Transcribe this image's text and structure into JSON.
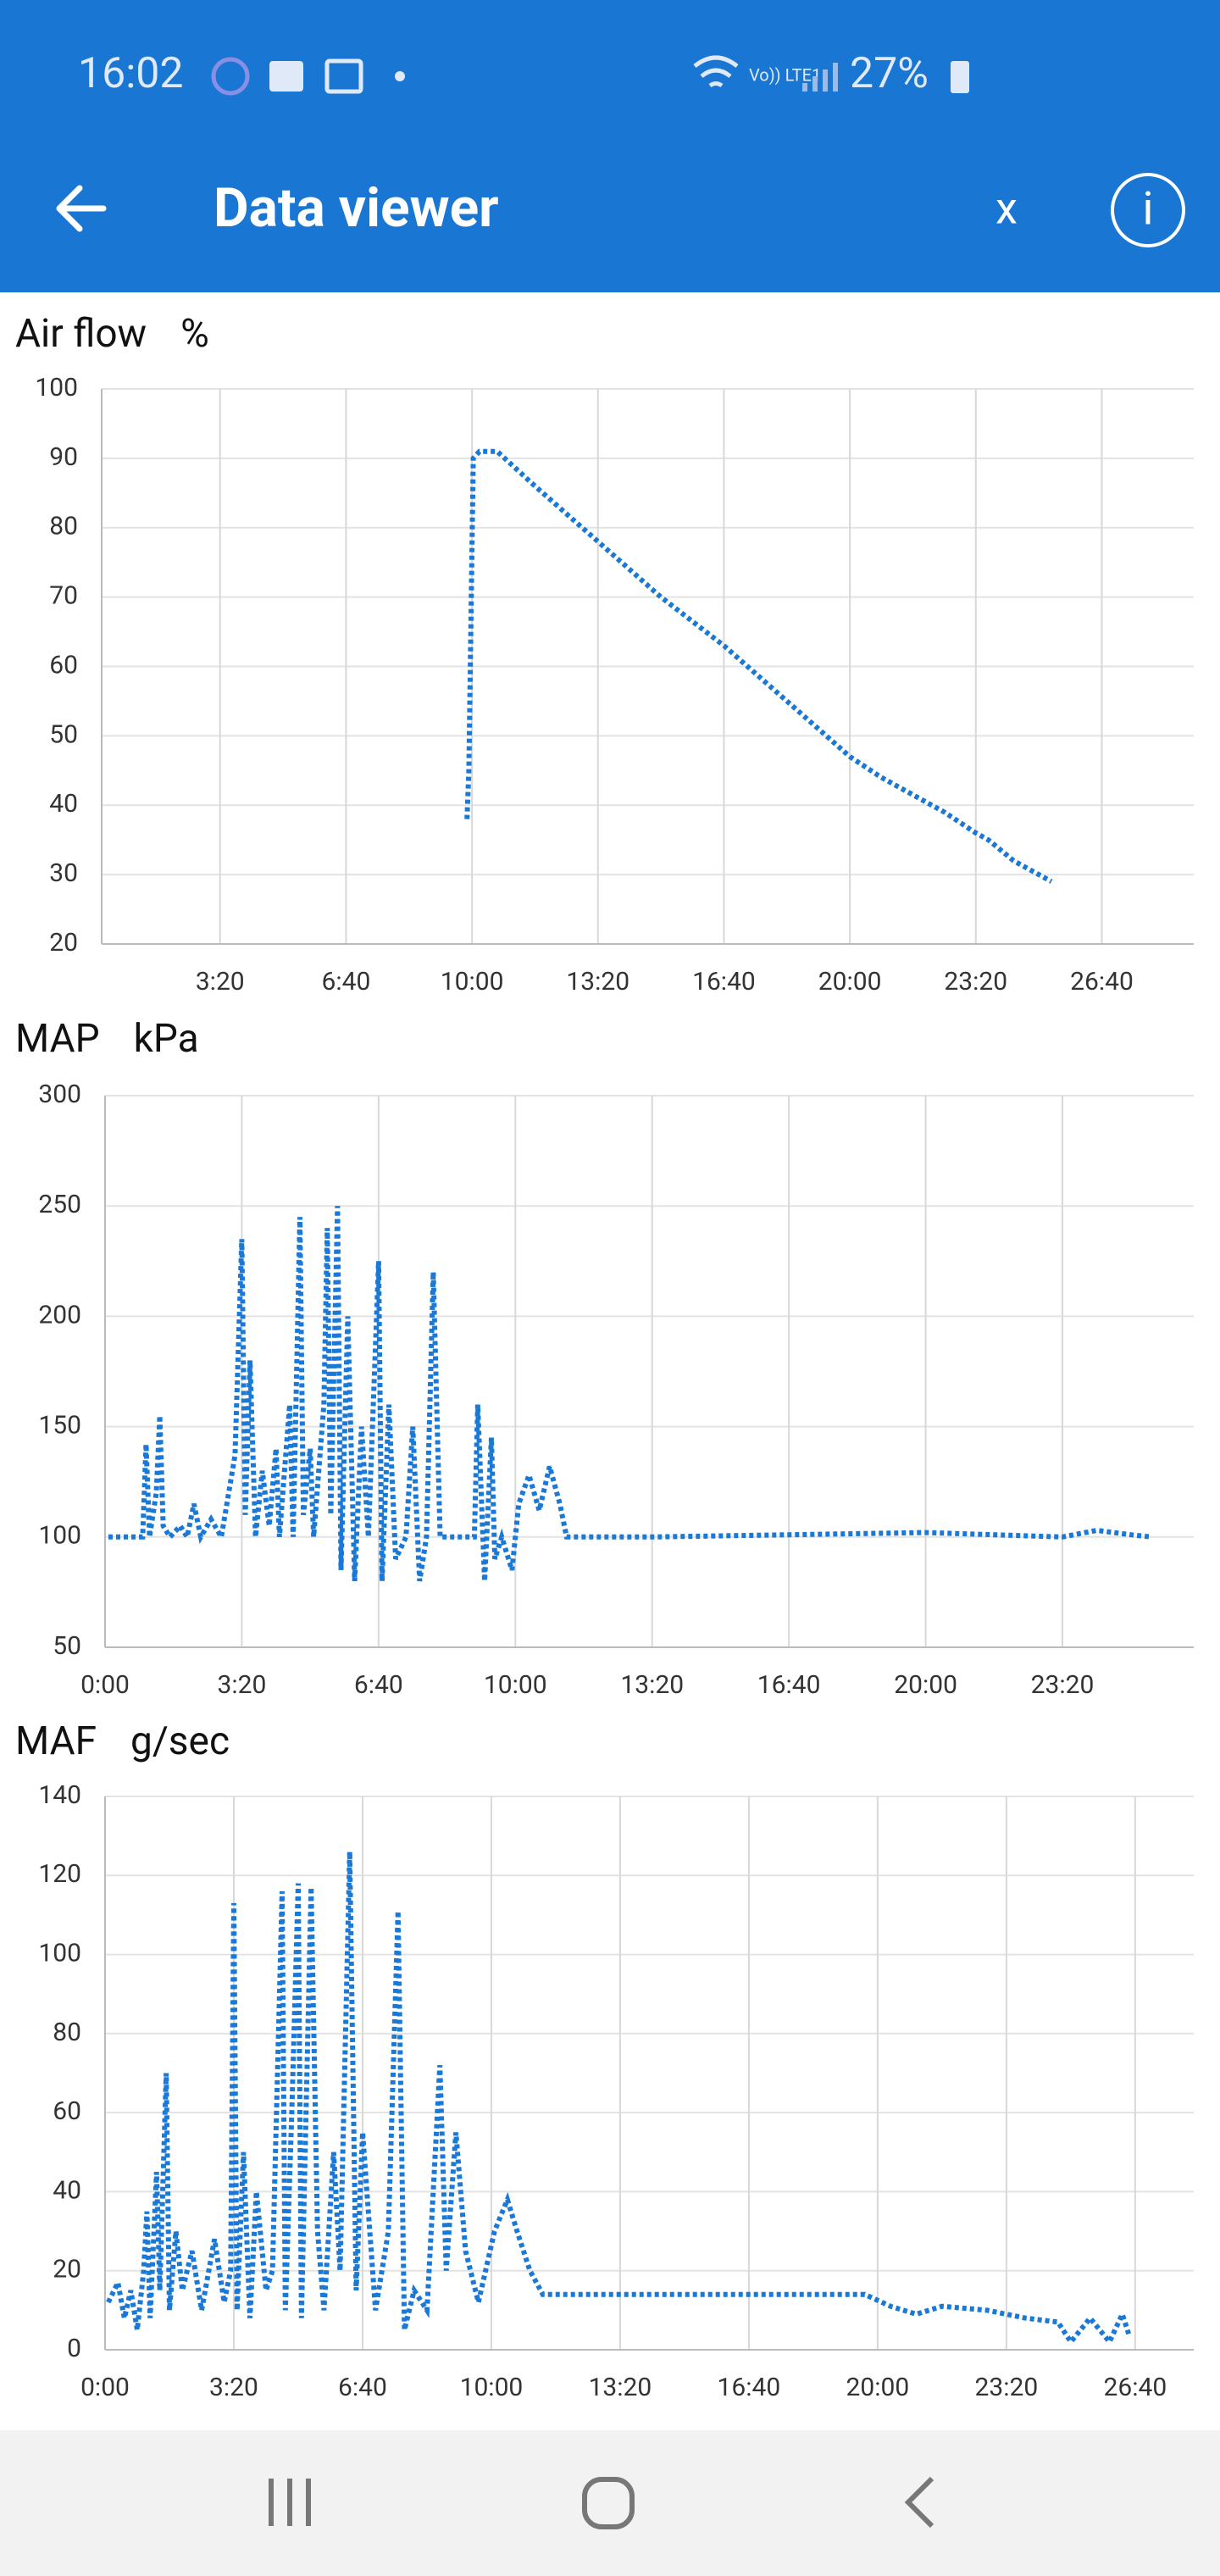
{
  "status_bar": {
    "time": "16:02",
    "network": "Vo)) LTE1",
    "battery": "27%"
  },
  "app_bar": {
    "title": "Data viewer",
    "close": "x",
    "info": "i"
  },
  "chart_data": [
    {
      "type": "line",
      "title": "Air flow",
      "y_unit": "%",
      "line_style": "dotted",
      "grid": true,
      "xlim": [
        12,
        1746
      ],
      "xticks": [
        {
          "value": 200,
          "label": "3:20"
        },
        {
          "value": 400,
          "label": "6:40"
        },
        {
          "value": 600,
          "label": "10:00"
        },
        {
          "value": 800,
          "label": "13:20"
        },
        {
          "value": 1000,
          "label": "16:40"
        },
        {
          "value": 1200,
          "label": "20:00"
        },
        {
          "value": 1400,
          "label": "23:20"
        },
        {
          "value": 1600,
          "label": "26:40"
        }
      ],
      "ylim": [
        20,
        100
      ],
      "yticks": [
        20,
        30,
        40,
        50,
        60,
        70,
        80,
        90,
        100
      ],
      "series": [
        {
          "color": "#1a78d6",
          "x": [
            592,
            595,
            602,
            612,
            640,
            700,
            800,
            900,
            1000,
            1100,
            1200,
            1250,
            1350,
            1400,
            1420,
            1460,
            1520
          ],
          "values": [
            38,
            45,
            90,
            91,
            91,
            86,
            78,
            70,
            63,
            55,
            47,
            44,
            39,
            36,
            35,
            32,
            29
          ]
        }
      ]
    },
    {
      "type": "line",
      "title": "MAP",
      "y_unit": "kPa",
      "line_style": "dotted",
      "grid": true,
      "xlim": [
        0,
        1592
      ],
      "xticks": [
        {
          "value": 0,
          "label": "0:00"
        },
        {
          "value": 200,
          "label": "3:20"
        },
        {
          "value": 400,
          "label": "6:40"
        },
        {
          "value": 600,
          "label": "10:00"
        },
        {
          "value": 800,
          "label": "13:20"
        },
        {
          "value": 1000,
          "label": "16:40"
        },
        {
          "value": 1200,
          "label": "20:00"
        },
        {
          "value": 1400,
          "label": "23:20"
        }
      ],
      "ylim": [
        50,
        300
      ],
      "yticks": [
        50,
        100,
        150,
        200,
        250,
        300
      ],
      "series": [
        {
          "color": "#1a78d6",
          "x": [
            5,
            40,
            55,
            60,
            65,
            75,
            80,
            85,
            95,
            110,
            120,
            130,
            140,
            155,
            170,
            190,
            200,
            205,
            212,
            220,
            230,
            240,
            250,
            255,
            270,
            275,
            285,
            290,
            300,
            305,
            320,
            325,
            330,
            340,
            345,
            355,
            365,
            375,
            385,
            400,
            405,
            415,
            425,
            440,
            450,
            460,
            470,
            480,
            490,
            540,
            545,
            555,
            565,
            570,
            580,
            595,
            605,
            620,
            635,
            650,
            665,
            675,
            800,
            1000,
            1200,
            1400,
            1450,
            1500,
            1530
          ],
          "values": [
            100,
            100,
            100,
            142,
            100,
            120,
            155,
            105,
            100,
            105,
            100,
            115,
            100,
            108,
            100,
            137,
            235,
            110,
            180,
            100,
            130,
            105,
            140,
            100,
            160,
            100,
            245,
            110,
            140,
            100,
            160,
            240,
            110,
            250,
            85,
            200,
            80,
            150,
            100,
            225,
            80,
            160,
            90,
            100,
            150,
            80,
            100,
            220,
            100,
            100,
            160,
            80,
            145,
            90,
            100,
            85,
            115,
            128,
            112,
            132,
            115,
            100,
            100,
            101,
            102,
            100,
            103,
            101,
            100
          ]
        }
      ]
    },
    {
      "type": "line",
      "title": "MAF",
      "y_unit": "g/sec",
      "line_style": "dotted",
      "grid": true,
      "xlim": [
        0,
        1691
      ],
      "xticks": [
        {
          "value": 0,
          "label": "0:00"
        },
        {
          "value": 200,
          "label": "3:20"
        },
        {
          "value": 400,
          "label": "6:40"
        },
        {
          "value": 600,
          "label": "10:00"
        },
        {
          "value": 800,
          "label": "13:20"
        },
        {
          "value": 1000,
          "label": "16:40"
        },
        {
          "value": 1200,
          "label": "20:00"
        },
        {
          "value": 1400,
          "label": "23:20"
        },
        {
          "value": 1600,
          "label": "26:40"
        }
      ],
      "ylim": [
        0,
        140
      ],
      "yticks": [
        0,
        20,
        40,
        60,
        80,
        100,
        120,
        140
      ],
      "series": [
        {
          "color": "#1a78d6",
          "x": [
            5,
            20,
            30,
            40,
            50,
            60,
            65,
            70,
            80,
            85,
            95,
            100,
            110,
            120,
            135,
            150,
            170,
            185,
            195,
            200,
            205,
            215,
            225,
            235,
            250,
            260,
            275,
            280,
            290,
            300,
            305,
            320,
            330,
            340,
            355,
            365,
            380,
            390,
            400,
            420,
            440,
            455,
            465,
            480,
            500,
            520,
            530,
            545,
            560,
            580,
            605,
            625,
            640,
            660,
            680,
            800,
            1000,
            1180,
            1220,
            1260,
            1300,
            1370,
            1430,
            1480,
            1500,
            1530,
            1560,
            1580,
            1590
          ],
          "values": [
            12,
            17,
            8,
            15,
            5,
            20,
            35,
            8,
            45,
            15,
            70,
            10,
            30,
            15,
            25,
            10,
            28,
            12,
            20,
            113,
            10,
            50,
            8,
            40,
            15,
            20,
            116,
            10,
            60,
            118,
            8,
            117,
            30,
            10,
            50,
            20,
            126,
            15,
            55,
            10,
            30,
            111,
            5,
            15,
            10,
            72,
            20,
            55,
            25,
            12,
            30,
            38,
            30,
            20,
            14,
            14,
            14,
            14,
            11,
            9,
            11,
            10,
            8,
            7,
            2,
            8,
            2,
            9,
            4
          ]
        }
      ]
    }
  ]
}
